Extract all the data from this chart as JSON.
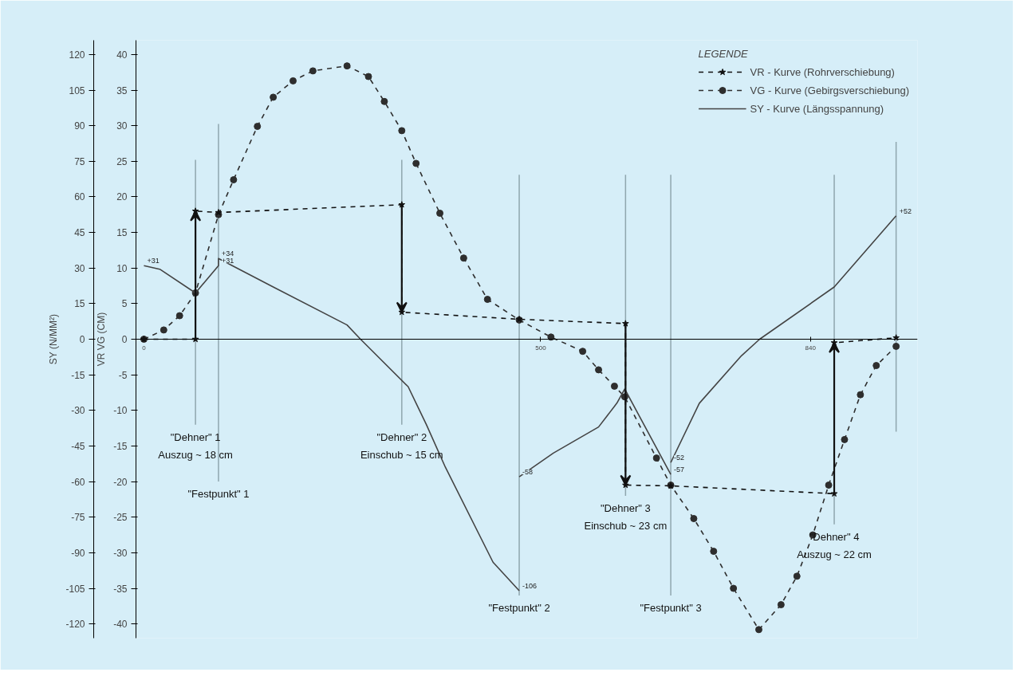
{
  "chart_data": {
    "type": "line",
    "xlim": [
      -10,
      975
    ],
    "xticks": [
      0,
      500,
      840
    ],
    "ylim": [
      -42,
      42
    ],
    "yticks": [
      -40,
      -35,
      -30,
      -25,
      -20,
      -15,
      -10,
      -5,
      0,
      5,
      10,
      15,
      20,
      25,
      30,
      35,
      40
    ],
    "y2lim": [
      -126,
      126
    ],
    "y2ticks": [
      -120,
      -105,
      -90,
      -75,
      -60,
      -45,
      -30,
      -15,
      0,
      15,
      30,
      45,
      60,
      75,
      90,
      105,
      120
    ],
    "ylabel": "VR VG (CM)",
    "y2label": "SY (N/MM²)",
    "legend_title": "LEGENDE",
    "legend": "top right",
    "grid": false,
    "series": [
      {
        "name": "VR - Kurve (Rohrverschiebung)",
        "color": "#111111",
        "marker": "star",
        "line_style": "dashed",
        "x": [
          0,
          65,
          65,
          94,
          325,
          325,
          473,
          607,
          607,
          664,
          870,
          870,
          948
        ],
        "values": [
          0,
          0,
          18,
          17.8,
          18.9,
          3.8,
          2.8,
          2.2,
          -20.5,
          -20.6,
          -21.7,
          -0.5,
          0.2
        ]
      },
      {
        "name": "VG - Kurve (Gebirgsverschiebung)",
        "color": "#2e2e2e",
        "marker": "circle",
        "line_style": "dashed",
        "x": [
          0,
          25,
          45,
          65,
          94,
          113,
          143,
          163,
          188,
          213,
          256,
          283,
          303,
          325,
          343,
          373,
          403,
          433,
          473,
          513,
          553,
          573,
          593,
          606,
          646,
          664,
          693,
          718,
          743,
          775,
          803,
          823,
          843,
          863,
          883,
          903,
          923,
          948
        ],
        "values": [
          0,
          1.3,
          3.3,
          6.5,
          17.5,
          22.4,
          29.9,
          34,
          36.3,
          37.7,
          38.4,
          36.9,
          33.4,
          29.3,
          24.7,
          17.7,
          11.4,
          5.6,
          2.7,
          0.3,
          -1.7,
          -4.3,
          -6.6,
          -8.1,
          -16.7,
          -20.5,
          -25.2,
          -29.8,
          -35,
          -40.8,
          -37.3,
          -33.3,
          -27.5,
          -20.5,
          -14.1,
          -7.8,
          -3.7,
          -1
        ]
      },
      {
        "name": "SY - Kurve (Längsspannung)",
        "color": "#444444",
        "marker": "none",
        "line_style": "solid",
        "axis": "y2",
        "x": [
          0,
          20,
          65,
          94,
          94,
          163,
          256,
          273,
          333,
          356,
          380,
          440,
          473,
          null,
          473,
          516,
          573,
          596,
          606,
          664,
          null,
          664,
          700,
          753,
          776,
          870,
          948
        ],
        "values": [
          31,
          29.5,
          19.5,
          31,
          34,
          22,
          6,
          0,
          -20,
          -36,
          -54,
          -94,
          -106,
          null,
          -58,
          -48,
          -37,
          -27,
          -21,
          -57,
          null,
          -52,
          -27,
          -7,
          0,
          22,
          52
        ],
        "value_labels": [
          "+31",
          null,
          null,
          "+31",
          "+34",
          null,
          null,
          null,
          null,
          null,
          null,
          null,
          "-106",
          null,
          "-58",
          null,
          null,
          null,
          null,
          "-57",
          null,
          "-52",
          null,
          null,
          null,
          null,
          "+52"
        ]
      }
    ],
    "ref_lines": [
      {
        "axis": "x",
        "value": 65,
        "label": "\"Dehner\" 1\nAuszug ~ 18 cm"
      },
      {
        "axis": "x",
        "value": 94,
        "label": "\"Festpunkt\" 1"
      },
      {
        "axis": "x",
        "value": 325,
        "label": "\"Dehner\" 2\nEinschub ~ 15 cm"
      },
      {
        "axis": "x",
        "value": 473,
        "label": "\"Festpunkt\" 2"
      },
      {
        "axis": "x",
        "value": 607,
        "label": "\"Dehner\" 3\nEinschub ~ 23 cm"
      },
      {
        "axis": "x",
        "value": 664,
        "label": "\"Festpunkt\" 3"
      },
      {
        "axis": "x",
        "value": 870,
        "label": "\"Dehner\" 4\nAuszug ~ 22 cm"
      },
      {
        "axis": "x",
        "value": 948
      }
    ]
  }
}
